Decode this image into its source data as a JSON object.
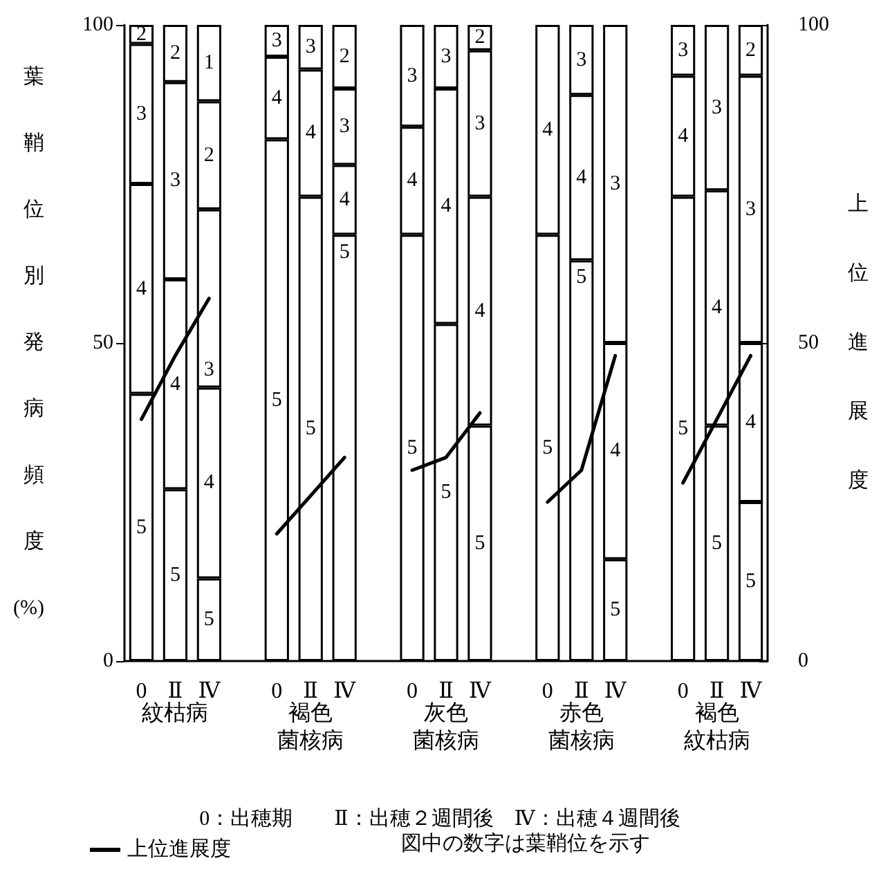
{
  "chart_data": {
    "type": "bar",
    "stacked": true,
    "ylabel": "葉鞘位別発病頻度(%)",
    "y2label": "上位進展度",
    "categories": [
      "0",
      "Ⅱ",
      "Ⅳ",
      null,
      "0",
      "Ⅱ",
      "Ⅳ",
      null,
      "0",
      "Ⅱ",
      "Ⅳ",
      null,
      "0",
      "Ⅱ",
      "Ⅳ",
      null,
      "0",
      "Ⅱ",
      "Ⅳ"
    ],
    "series": [
      {
        "name": "5",
        "color": "#ffffff",
        "values": [
          42,
          27,
          13,
          null,
          82,
          73,
          67,
          null,
          67,
          53,
          37,
          null,
          67,
          63,
          16,
          null,
          73,
          37,
          25
        ]
      },
      {
        "name": "4",
        "color": "#ffffff",
        "values": [
          33,
          33,
          30,
          null,
          13,
          20,
          11,
          null,
          17,
          37,
          36,
          null,
          33,
          26,
          34,
          null,
          19,
          37,
          25
        ]
      },
      {
        "name": "3",
        "color": "#ffffff",
        "values": [
          22,
          31,
          28,
          null,
          5,
          7,
          12,
          null,
          16,
          10,
          23,
          null,
          null,
          11,
          50,
          null,
          8,
          26,
          42
        ]
      },
      {
        "name": "2",
        "color": "#ffffff",
        "values": [
          3,
          9,
          17,
          null,
          null,
          null,
          10,
          null,
          null,
          null,
          4,
          null,
          null,
          null,
          null,
          null,
          null,
          null,
          8
        ]
      },
      {
        "name": "1",
        "color": "#ffffff",
        "values": [
          null,
          null,
          12,
          null,
          null,
          null,
          null,
          null,
          null,
          null,
          null,
          null,
          null,
          null,
          null,
          null,
          null,
          null,
          null
        ]
      },
      {
        "name": "上位進展度",
        "type": "line",
        "axis": "y2",
        "color": "#000000",
        "values": [
          38,
          48,
          57,
          null,
          20,
          26,
          32,
          null,
          30,
          32,
          39,
          null,
          25,
          30,
          48,
          null,
          28,
          38,
          48
        ]
      }
    ],
    "ylim": [
      0,
      100
    ],
    "yticks": [
      0,
      50,
      100
    ],
    "y2lim": [
      0,
      100
    ],
    "y2ticks": [
      0,
      50,
      100
    ],
    "grid": false,
    "legend": "bottom left",
    "marker": "none",
    "line_style": "solid",
    "annotations": [
      "紋枯病",
      "褐色",
      "菌核病",
      "灰色",
      "菌核病",
      "赤色",
      "菌核病",
      "褐色",
      "紋枯病",
      "0：出穂期　　Ⅱ：出穂２週間後　Ⅳ：出穂４週間後",
      "図中の数字は葉鞘位を示す"
    ]
  }
}
